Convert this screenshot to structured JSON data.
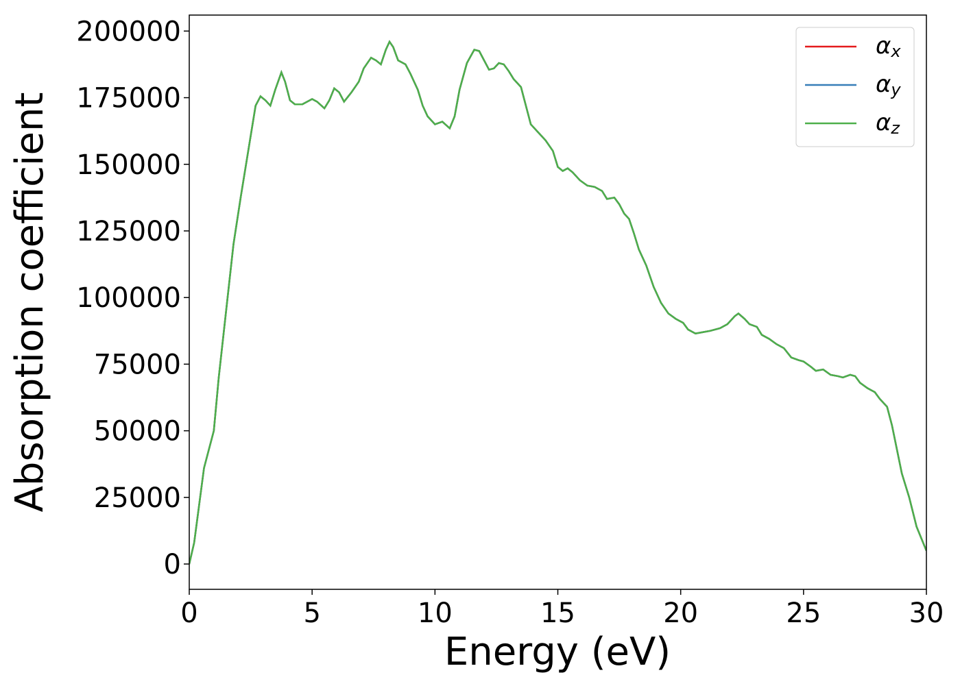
{
  "chart_data": {
    "type": "line",
    "x_label": "Energy (eV)",
    "y_label": "Absorption coefficient",
    "xlim": [
      0,
      30
    ],
    "ylim": [
      -9500,
      206000
    ],
    "xticks": [
      0,
      5,
      10,
      15,
      20,
      25,
      30
    ],
    "yticks": [
      0,
      25000,
      50000,
      75000,
      100000,
      125000,
      150000,
      175000,
      200000
    ],
    "legend": "upper right",
    "grid": false,
    "x": [
      0,
      0.2,
      0.4,
      0.6,
      0.8,
      1.0,
      1.2,
      1.5,
      1.8,
      2.1,
      2.4,
      2.7,
      2.9,
      3.1,
      3.3,
      3.5,
      3.75,
      3.9,
      4.1,
      4.3,
      4.6,
      5.0,
      5.2,
      5.5,
      5.7,
      5.9,
      6.1,
      6.3,
      6.6,
      6.9,
      7.1,
      7.4,
      7.6,
      7.8,
      8.0,
      8.15,
      8.3,
      8.5,
      8.8,
      9.0,
      9.3,
      9.5,
      9.7,
      10.0,
      10.3,
      10.6,
      10.8,
      11.0,
      11.3,
      11.6,
      11.8,
      12.0,
      12.2,
      12.4,
      12.6,
      12.8,
      13.0,
      13.2,
      13.5,
      13.7,
      13.9,
      14.2,
      14.5,
      14.8,
      15.0,
      15.2,
      15.4,
      15.6,
      15.9,
      16.2,
      16.5,
      16.8,
      17.0,
      17.3,
      17.5,
      17.7,
      17.9,
      18.1,
      18.3,
      18.6,
      18.9,
      19.2,
      19.5,
      19.8,
      20.1,
      20.3,
      20.6,
      20.9,
      21.2,
      21.6,
      21.9,
      22.2,
      22.35,
      22.6,
      22.8,
      23.1,
      23.3,
      23.6,
      23.9,
      24.2,
      24.5,
      24.8,
      25.0,
      25.3,
      25.5,
      25.8,
      26.1,
      26.4,
      26.6,
      26.9,
      27.1,
      27.3,
      27.6,
      27.9,
      28.1,
      28.4,
      28.6,
      28.8,
      29.0,
      29.3,
      29.6,
      30.0
    ],
    "series": [
      {
        "name": "αx",
        "color": "#e41a1c",
        "values": [
          0,
          8000,
          22000,
          36000,
          43000,
          50000,
          70000,
          95000,
          120000,
          138000,
          155000,
          172000,
          175500,
          174000,
          172000,
          178000,
          184500,
          181000,
          174000,
          172500,
          172500,
          174500,
          173500,
          171000,
          174000,
          178500,
          177000,
          173500,
          177000,
          181000,
          186000,
          190000,
          189000,
          187500,
          193000,
          196000,
          194000,
          189000,
          187500,
          184000,
          178000,
          172000,
          168000,
          165000,
          166000,
          163500,
          168000,
          178000,
          188000,
          193000,
          192500,
          189000,
          185500,
          186000,
          188000,
          187500,
          185000,
          182000,
          179000,
          172000,
          165000,
          162000,
          159000,
          155000,
          149000,
          147500,
          148500,
          147000,
          144000,
          142000,
          141500,
          140000,
          137000,
          137500,
          135000,
          131500,
          129500,
          124000,
          118000,
          112000,
          104000,
          98000,
          94000,
          92000,
          90500,
          88000,
          86500,
          87000,
          87500,
          88500,
          90000,
          93000,
          94000,
          92000,
          90000,
          89000,
          86000,
          84500,
          82500,
          81000,
          77500,
          76500,
          76000,
          74000,
          72500,
          73000,
          71000,
          70500,
          70000,
          71000,
          70500,
          68000,
          66000,
          64500,
          62000,
          59000,
          52000,
          43000,
          34000,
          25000,
          14000,
          5000
        ]
      },
      {
        "name": "αy",
        "color": "#377eb8",
        "values": [
          0,
          8000,
          22000,
          36000,
          43000,
          50000,
          70000,
          95000,
          120000,
          138000,
          155000,
          172000,
          175500,
          174000,
          172000,
          178000,
          184500,
          181000,
          174000,
          172500,
          172500,
          174500,
          173500,
          171000,
          174000,
          178500,
          177000,
          173500,
          177000,
          181000,
          186000,
          190000,
          189000,
          187500,
          193000,
          196000,
          194000,
          189000,
          187500,
          184000,
          178000,
          172000,
          168000,
          165000,
          166000,
          163500,
          168000,
          178000,
          188000,
          193000,
          192500,
          189000,
          185500,
          186000,
          188000,
          187500,
          185000,
          182000,
          179000,
          172000,
          165000,
          162000,
          159000,
          155000,
          149000,
          147500,
          148500,
          147000,
          144000,
          142000,
          141500,
          140000,
          137000,
          137500,
          135000,
          131500,
          129500,
          124000,
          118000,
          112000,
          104000,
          98000,
          94000,
          92000,
          90500,
          88000,
          86500,
          87000,
          87500,
          88500,
          90000,
          93000,
          94000,
          92000,
          90000,
          89000,
          86000,
          84500,
          82500,
          81000,
          77500,
          76500,
          76000,
          74000,
          72500,
          73000,
          71000,
          70500,
          70000,
          71000,
          70500,
          68000,
          66000,
          64500,
          62000,
          59000,
          52000,
          43000,
          34000,
          25000,
          14000,
          5000
        ]
      },
      {
        "name": "αz",
        "color": "#4daf4a",
        "values": [
          0,
          8000,
          22000,
          36000,
          43000,
          50000,
          70000,
          95000,
          120000,
          138000,
          155000,
          172000,
          175500,
          174000,
          172000,
          178000,
          184500,
          181000,
          174000,
          172500,
          172500,
          174500,
          173500,
          171000,
          174000,
          178500,
          177000,
          173500,
          177000,
          181000,
          186000,
          190000,
          189000,
          187500,
          193000,
          196000,
          194000,
          189000,
          187500,
          184000,
          178000,
          172000,
          168000,
          165000,
          166000,
          163500,
          168000,
          178000,
          188000,
          193000,
          192500,
          189000,
          185500,
          186000,
          188000,
          187500,
          185000,
          182000,
          179000,
          172000,
          165000,
          162000,
          159000,
          155000,
          149000,
          147500,
          148500,
          147000,
          144000,
          142000,
          141500,
          140000,
          137000,
          137500,
          135000,
          131500,
          129500,
          124000,
          118000,
          112000,
          104000,
          98000,
          94000,
          92000,
          90500,
          88000,
          86500,
          87000,
          87500,
          88500,
          90000,
          93000,
          94000,
          92000,
          90000,
          89000,
          86000,
          84500,
          82500,
          81000,
          77500,
          76500,
          76000,
          74000,
          72500,
          73000,
          71000,
          70500,
          70000,
          71000,
          70500,
          68000,
          66000,
          64500,
          62000,
          59000,
          52000,
          43000,
          34000,
          25000,
          14000,
          5000
        ]
      }
    ]
  }
}
